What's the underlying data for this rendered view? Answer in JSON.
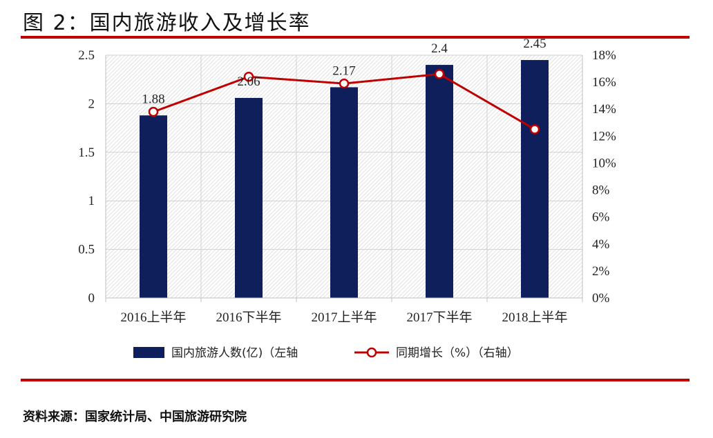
{
  "header": {
    "title": "图 2：国内旅游收入及增长率"
  },
  "footer": {
    "source": "资料来源：国家统计局、中国旅游研究院"
  },
  "colors": {
    "bar": "#0e1f5b",
    "line": "#c00000",
    "rule": "#c00000",
    "marker_fill": "#ffffff"
  },
  "chart_data": {
    "type": "bar",
    "categories": [
      "2016上半年",
      "2016下半年",
      "2017上半年",
      "2017下半年",
      "2018上半年"
    ],
    "series": [
      {
        "name": "国内旅游人数(亿)（左轴",
        "type": "bar",
        "axis": "left",
        "values": [
          1.88,
          2.06,
          2.17,
          2.4,
          2.45
        ],
        "data_labels": [
          "1.88",
          "2.06",
          "2.17",
          "2.4",
          "2.45"
        ]
      },
      {
        "name": "同期增长（%）（右轴）",
        "type": "line",
        "axis": "right",
        "values": [
          13.8,
          16.4,
          15.9,
          16.6,
          12.5
        ]
      }
    ],
    "y_left": {
      "lim": [
        0,
        2.5
      ],
      "ticks": [
        "0",
        "0.5",
        "1",
        "1.5",
        "2",
        "2.5"
      ]
    },
    "y_right": {
      "lim": [
        0,
        18
      ],
      "ticks": [
        "0%",
        "2%",
        "4%",
        "6%",
        "8%",
        "10%",
        "12%",
        "14%",
        "16%",
        "18%"
      ]
    },
    "grid": true,
    "legend": "bottom"
  }
}
